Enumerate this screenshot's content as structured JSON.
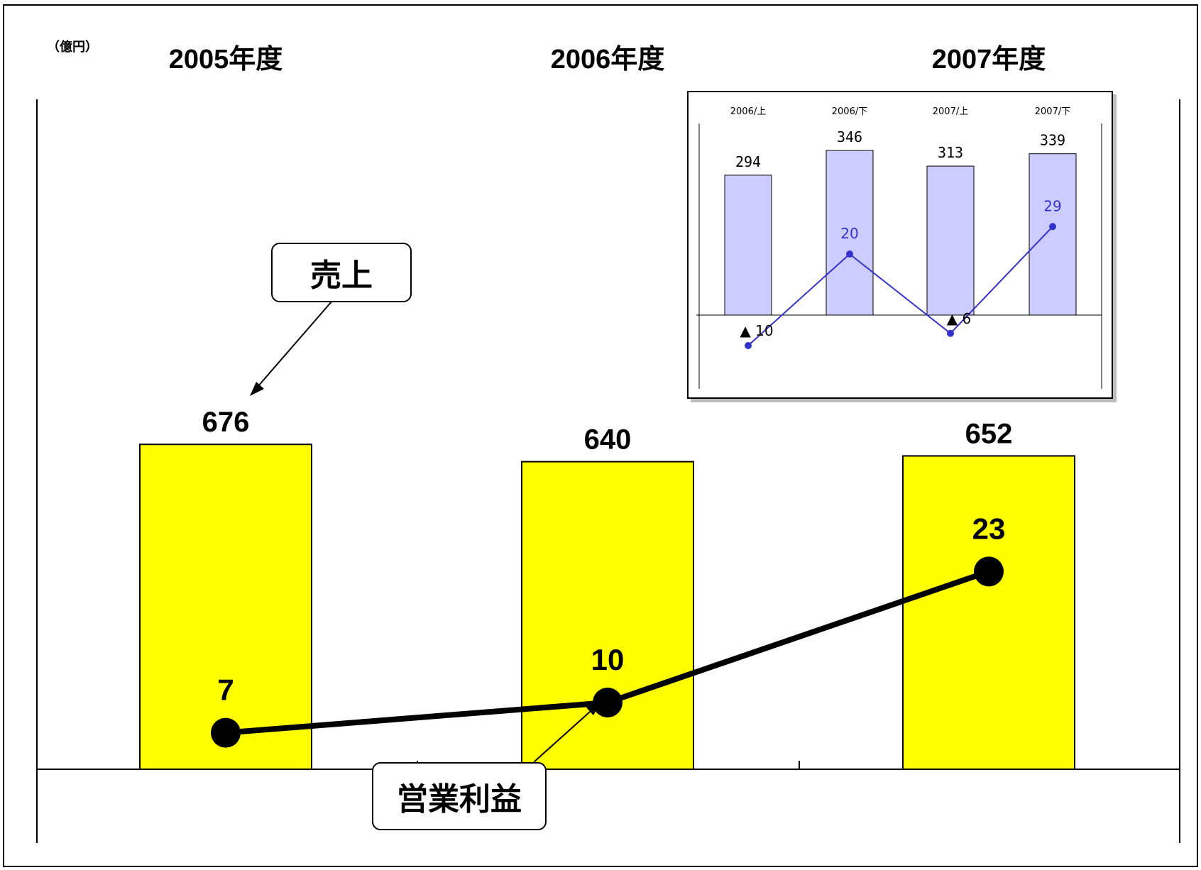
{
  "unit_label": "（億円）",
  "annual": {
    "years": [
      "2005年度",
      "2006年度",
      "2007年度"
    ],
    "sales": [
      676,
      640,
      652
    ],
    "operating_profit": [
      7,
      10,
      23
    ]
  },
  "callouts": {
    "sales": "売上",
    "profit": "営業利益"
  },
  "half_year": {
    "periods": [
      "2006/上",
      "2006/下",
      "2007/上",
      "2007/下"
    ],
    "sales": [
      294,
      346,
      313,
      339
    ],
    "operating_profit_labels": [
      "▲ 10",
      "20",
      "▲ 6",
      "29"
    ],
    "operating_profit": [
      -10,
      20,
      -6,
      29
    ]
  },
  "colors": {
    "annual_bar": "#ffff00",
    "half_bar": "#ccccff",
    "half_line": "#3333cc"
  },
  "chart_data": [
    {
      "type": "bar",
      "categories": [
        "2005年度",
        "2006年度",
        "2007年度"
      ],
      "series": [
        {
          "name": "売上",
          "type": "bar",
          "values": [
            676,
            640,
            652
          ]
        },
        {
          "name": "営業利益",
          "type": "line",
          "values": [
            7,
            10,
            23
          ]
        }
      ],
      "ylabel": "（億円）"
    },
    {
      "type": "bar",
      "categories": [
        "2006/上",
        "2006/下",
        "2007/上",
        "2007/下"
      ],
      "series": [
        {
          "type": "bar",
          "values": [
            294,
            346,
            313,
            339
          ]
        },
        {
          "type": "line",
          "values": [
            -10,
            20,
            -6,
            29
          ]
        }
      ]
    }
  ]
}
